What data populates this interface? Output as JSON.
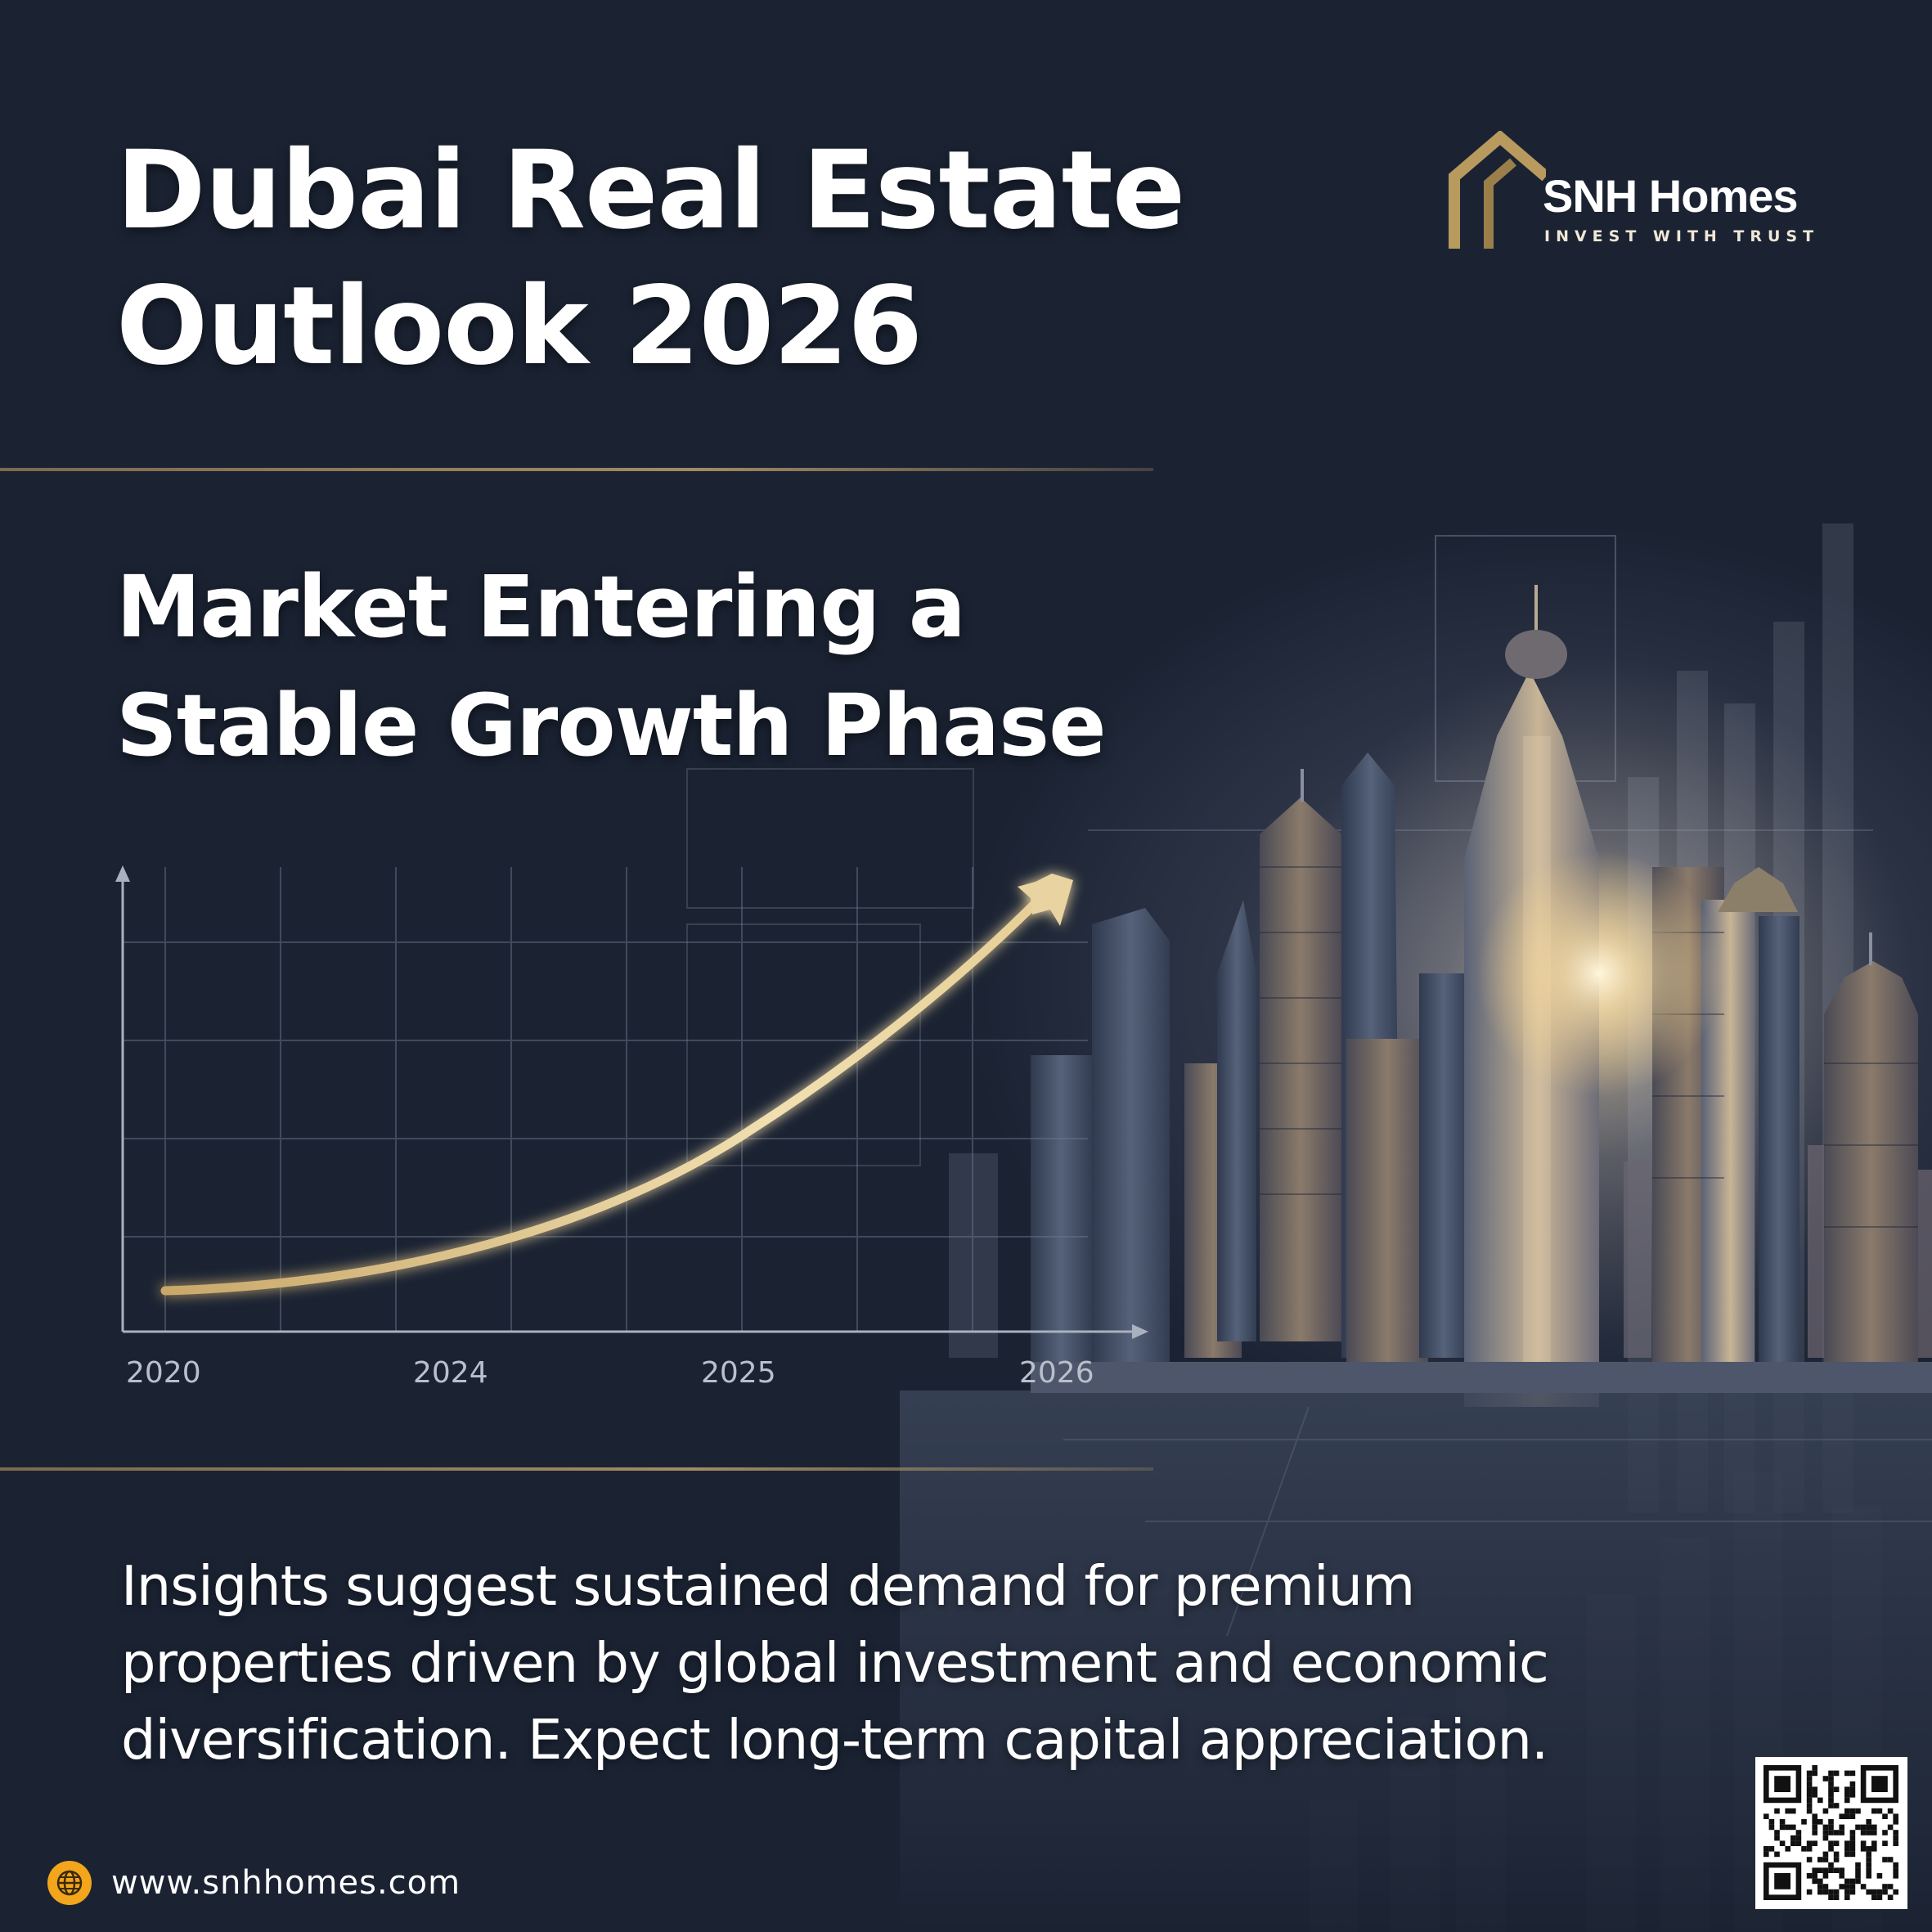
{
  "poster": {
    "title": "Dubai Real Estate\nOutlook 2026",
    "subtitle": "Market Entering a\nStable Growth Phase",
    "description": "Insights suggest sustained demand for premium properties driven by global investment and economic diversification. Expect long-term capital appreciation."
  },
  "brand": {
    "name": "SNH Homes",
    "tagline": "INVEST WITH TRUST",
    "logo_icon": "house-roof-icon",
    "accent_color": "#b89a5e"
  },
  "chart": {
    "x_labels": [
      "2020",
      "2024",
      "2025",
      "2026"
    ],
    "line_color": "#e6cf96"
  },
  "footer": {
    "website": "www.snhhomes.com",
    "website_icon": "globe-icon",
    "qr_icon": "qr-code-icon"
  }
}
